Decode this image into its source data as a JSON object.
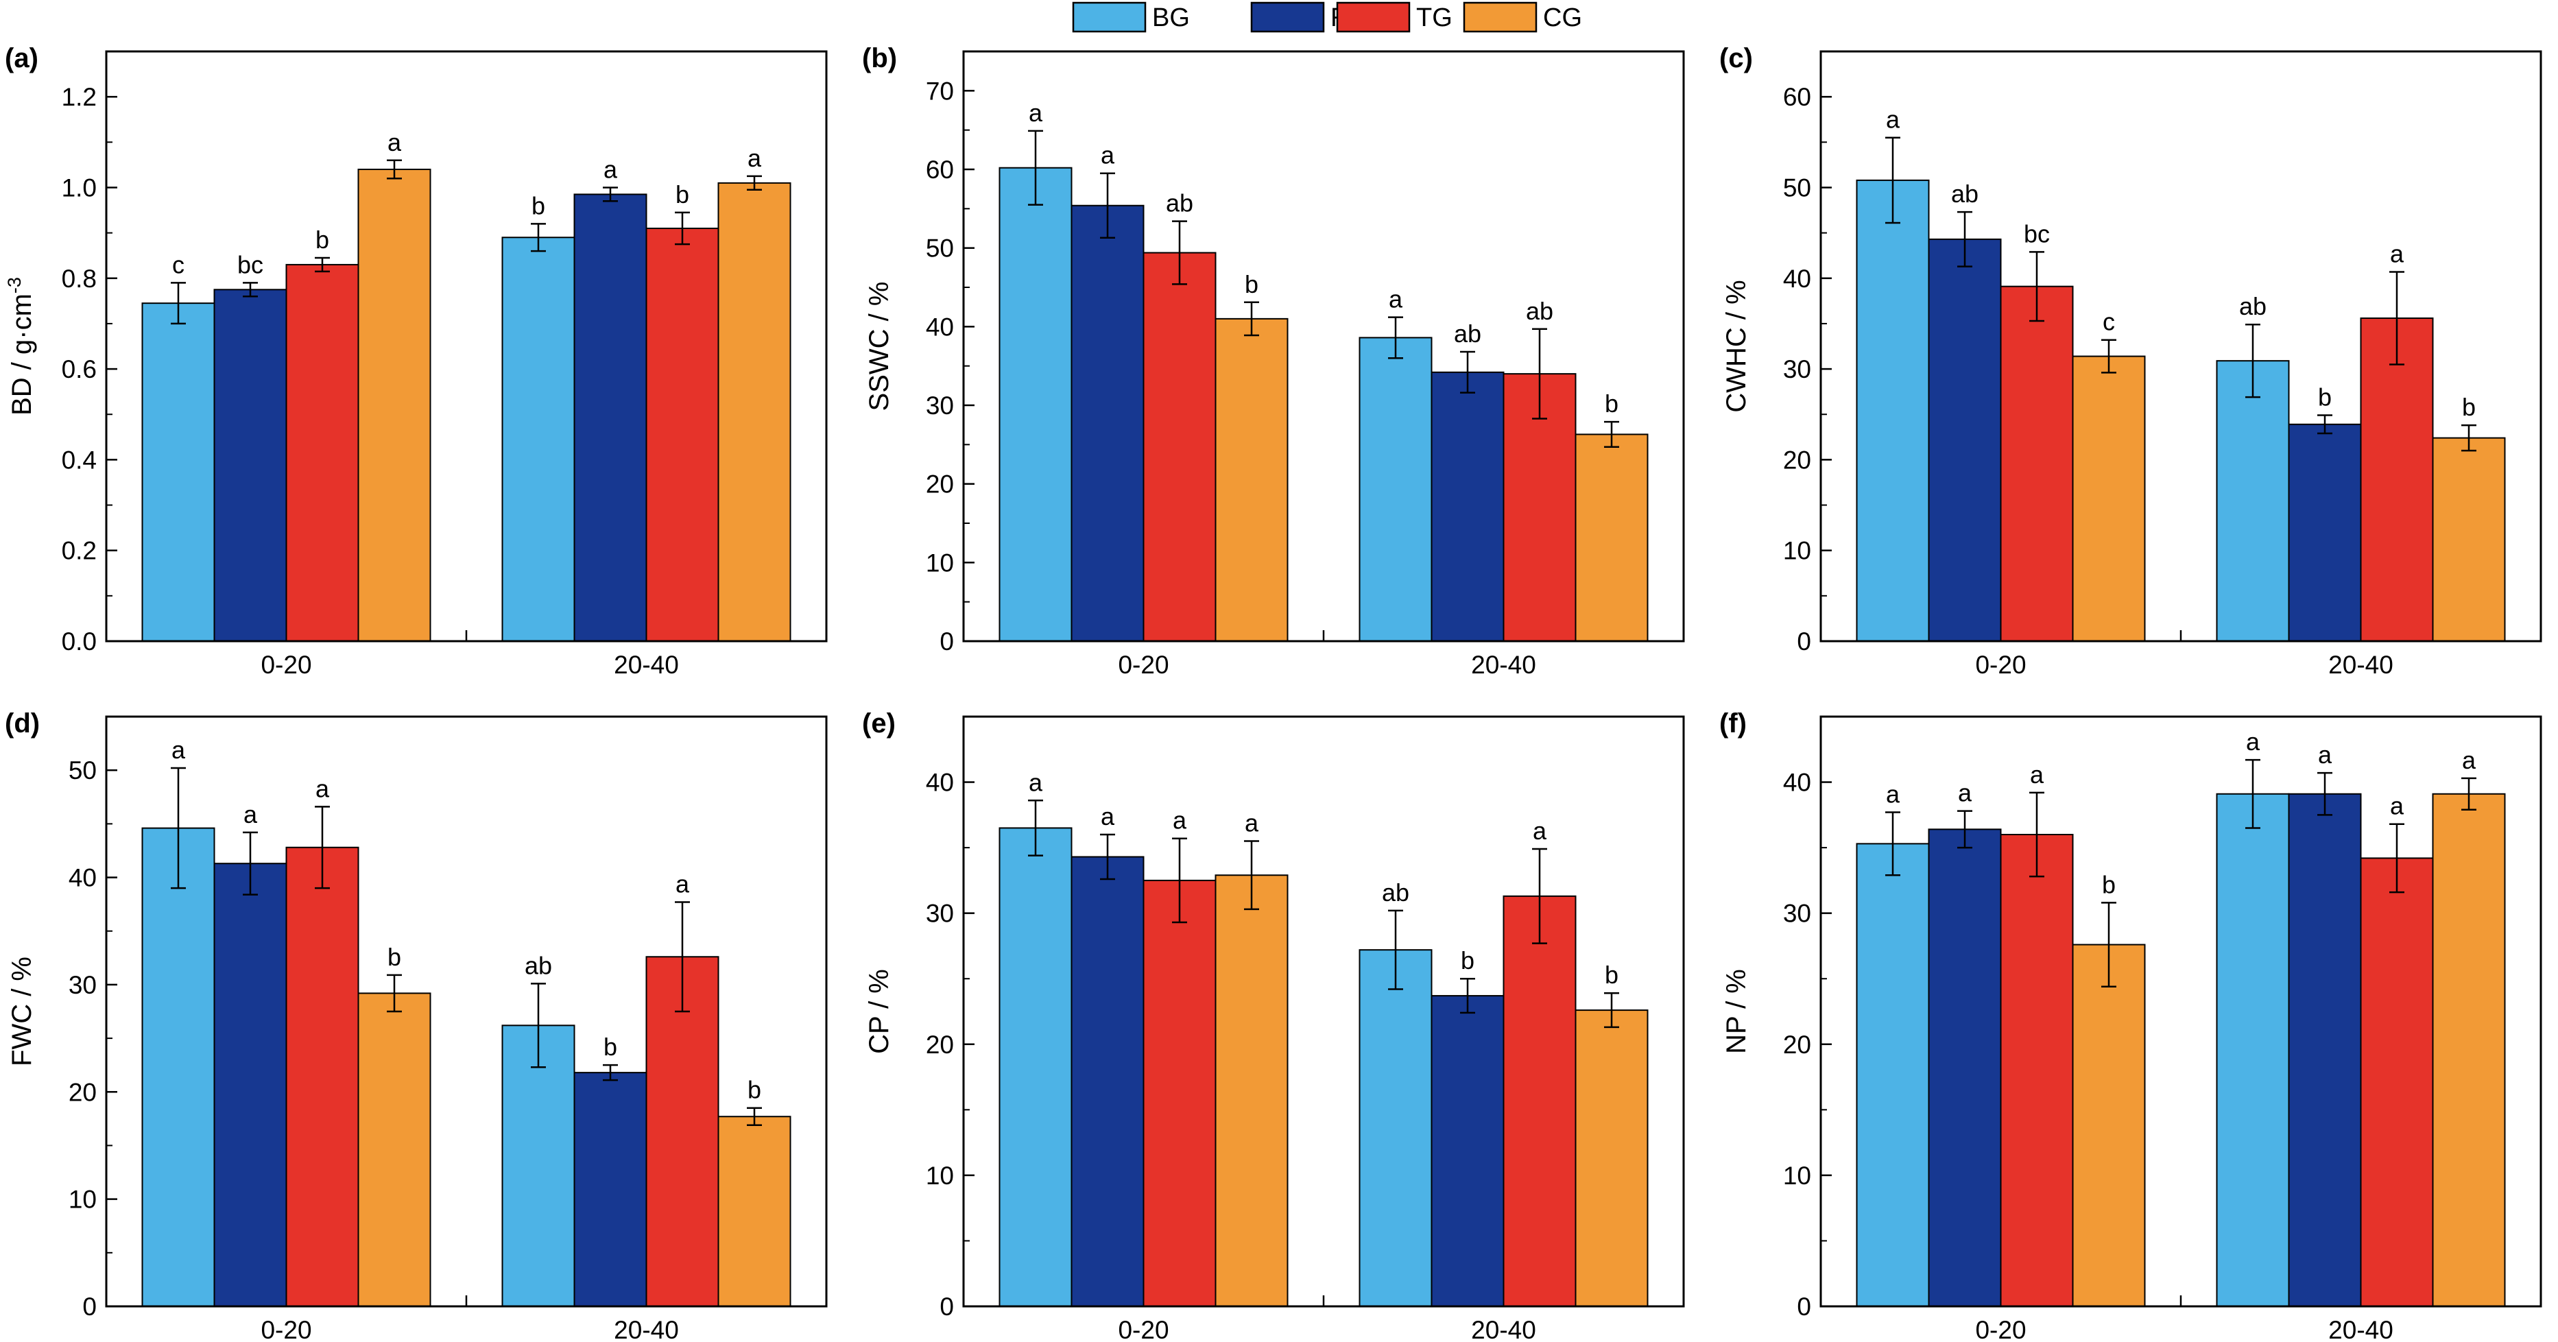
{
  "legend": {
    "items": [
      {
        "name": "BG",
        "color": "#4db3e6"
      },
      {
        "name": "RG",
        "color": "#173891"
      },
      {
        "name": "TG",
        "color": "#e6332a"
      },
      {
        "name": "CG",
        "color": "#f29a36"
      }
    ]
  },
  "chart_data": [
    {
      "type": "bar",
      "panel": "(a)",
      "ylabel": "BD / g·cm",
      "ylabel_sup": "-3",
      "categories": [
        "0-20",
        "20-40"
      ],
      "ylim": [
        0,
        1.3
      ],
      "yticks": [
        0,
        0.2,
        0.4,
        0.6,
        0.8,
        1.0,
        1.2
      ],
      "tick_format": "0.0",
      "series": [
        {
          "name": "BG",
          "values": [
            0.745,
            0.89
          ],
          "errors": [
            0.045,
            0.03
          ],
          "letters": [
            "c",
            "b"
          ]
        },
        {
          "name": "RG",
          "values": [
            0.775,
            0.985
          ],
          "errors": [
            0.015,
            0.015
          ],
          "letters": [
            "bc",
            "a"
          ]
        },
        {
          "name": "TG",
          "values": [
            0.83,
            0.91
          ],
          "errors": [
            0.015,
            0.035
          ],
          "letters": [
            "b",
            "b"
          ]
        },
        {
          "name": "CG",
          "values": [
            1.04,
            1.01
          ],
          "errors": [
            0.02,
            0.015
          ],
          "letters": [
            "a",
            "a"
          ]
        }
      ]
    },
    {
      "type": "bar",
      "panel": "(b)",
      "ylabel": "SSWC / %",
      "categories": [
        "0-20",
        "20-40"
      ],
      "ylim": [
        0,
        75
      ],
      "yticks": [
        0,
        10,
        20,
        30,
        40,
        50,
        60,
        70
      ],
      "tick_format": "int",
      "series": [
        {
          "name": "BG",
          "values": [
            60.2,
            38.6
          ],
          "errors": [
            4.7,
            2.6
          ],
          "letters": [
            "a",
            "a"
          ]
        },
        {
          "name": "RG",
          "values": [
            55.4,
            34.2
          ],
          "errors": [
            4.1,
            2.6
          ],
          "letters": [
            "a",
            "ab"
          ]
        },
        {
          "name": "TG",
          "values": [
            49.4,
            34.0
          ],
          "errors": [
            4.0,
            5.7
          ],
          "letters": [
            "ab",
            "ab"
          ]
        },
        {
          "name": "CG",
          "values": [
            41.0,
            26.3
          ],
          "errors": [
            2.1,
            1.6
          ],
          "letters": [
            "b",
            "b"
          ]
        }
      ]
    },
    {
      "type": "bar",
      "panel": "(c)",
      "ylabel": "CWHC / %",
      "categories": [
        "0-20",
        "20-40"
      ],
      "ylim": [
        0,
        65
      ],
      "yticks": [
        0,
        10,
        20,
        30,
        40,
        50,
        60
      ],
      "tick_format": "int",
      "series": [
        {
          "name": "BG",
          "values": [
            50.8,
            30.9
          ],
          "errors": [
            4.7,
            4.0
          ],
          "letters": [
            "a",
            "ab"
          ]
        },
        {
          "name": "RG",
          "values": [
            44.3,
            23.9
          ],
          "errors": [
            3.0,
            1.0
          ],
          "letters": [
            "ab",
            "b"
          ]
        },
        {
          "name": "TG",
          "values": [
            39.1,
            35.6
          ],
          "errors": [
            3.8,
            5.1
          ],
          "letters": [
            "bc",
            "a"
          ]
        },
        {
          "name": "CG",
          "values": [
            31.4,
            22.4
          ],
          "errors": [
            1.8,
            1.4
          ],
          "letters": [
            "c",
            "b"
          ]
        }
      ]
    },
    {
      "type": "bar",
      "panel": "(d)",
      "ylabel": "FWC / %",
      "categories": [
        "0-20",
        "20-40"
      ],
      "ylim": [
        0,
        55
      ],
      "yticks": [
        0,
        10,
        20,
        30,
        40,
        50
      ],
      "tick_format": "int",
      "series": [
        {
          "name": "BG",
          "values": [
            44.6,
            26.2
          ],
          "errors": [
            5.6,
            3.9
          ],
          "letters": [
            "a",
            "ab"
          ]
        },
        {
          "name": "RG",
          "values": [
            41.3,
            21.8
          ],
          "errors": [
            2.9,
            0.7
          ],
          "letters": [
            "a",
            "b"
          ]
        },
        {
          "name": "TG",
          "values": [
            42.8,
            32.6
          ],
          "errors": [
            3.8,
            5.1
          ],
          "letters": [
            "a",
            "a"
          ]
        },
        {
          "name": "CG",
          "values": [
            29.2,
            17.7
          ],
          "errors": [
            1.7,
            0.8
          ],
          "letters": [
            "b",
            "b"
          ]
        }
      ]
    },
    {
      "type": "bar",
      "panel": "(e)",
      "ylabel": "CP / %",
      "categories": [
        "0-20",
        "20-40"
      ],
      "ylim": [
        0,
        45
      ],
      "yticks": [
        0,
        10,
        20,
        30,
        40
      ],
      "tick_format": "int",
      "series": [
        {
          "name": "BG",
          "values": [
            36.5,
            27.2
          ],
          "errors": [
            2.1,
            3.0
          ],
          "letters": [
            "a",
            "ab"
          ]
        },
        {
          "name": "RG",
          "values": [
            34.3,
            23.7
          ],
          "errors": [
            1.7,
            1.3
          ],
          "letters": [
            "a",
            "b"
          ]
        },
        {
          "name": "TG",
          "values": [
            32.5,
            31.3
          ],
          "errors": [
            3.2,
            3.6
          ],
          "letters": [
            "a",
            "a"
          ]
        },
        {
          "name": "CG",
          "values": [
            32.9,
            22.6
          ],
          "errors": [
            2.6,
            1.3
          ],
          "letters": [
            "a",
            "b"
          ]
        }
      ]
    },
    {
      "type": "bar",
      "panel": "(f)",
      "ylabel": "NP / %",
      "categories": [
        "0-20",
        "20-40"
      ],
      "ylim": [
        0,
        45
      ],
      "yticks": [
        0,
        10,
        20,
        30,
        40
      ],
      "tick_format": "int",
      "series": [
        {
          "name": "BG",
          "values": [
            35.3,
            39.1
          ],
          "errors": [
            2.4,
            2.6
          ],
          "letters": [
            "a",
            "a"
          ]
        },
        {
          "name": "RG",
          "values": [
            36.4,
            39.1
          ],
          "errors": [
            1.4,
            1.6
          ],
          "letters": [
            "a",
            "a"
          ]
        },
        {
          "name": "TG",
          "values": [
            36.0,
            34.2
          ],
          "errors": [
            3.2,
            2.6
          ],
          "letters": [
            "a",
            "a"
          ]
        },
        {
          "name": "CG",
          "values": [
            27.6,
            39.1
          ],
          "errors": [
            3.2,
            1.2
          ],
          "letters": [
            "b",
            "a"
          ]
        }
      ]
    }
  ]
}
